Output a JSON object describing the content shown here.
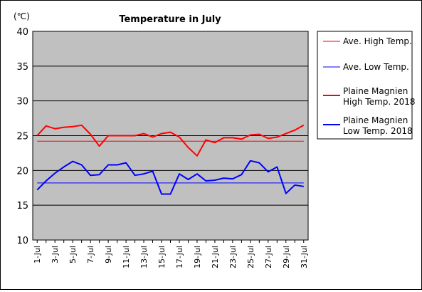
{
  "chart_data": {
    "type": "line",
    "title": "Temperature in July",
    "unit_label": "(℃)",
    "ylim": [
      10,
      40
    ],
    "yticks": [
      10,
      15,
      20,
      25,
      30,
      35,
      40
    ],
    "grid": true,
    "legend_placement": "right",
    "x": [
      "1-Jul",
      "2-Jul",
      "3-Jul",
      "4-Jul",
      "5-Jul",
      "6-Jul",
      "7-Jul",
      "8-Jul",
      "9-Jul",
      "10-Jul",
      "11-Jul",
      "12-Jul",
      "13-Jul",
      "14-Jul",
      "15-Jul",
      "16-Jul",
      "17-Jul",
      "18-Jul",
      "19-Jul",
      "20-Jul",
      "21-Jul",
      "22-Jul",
      "23-Jul",
      "24-Jul",
      "25-Jul",
      "26-Jul",
      "27-Jul",
      "28-Jul",
      "29-Jul",
      "30-Jul",
      "31-Jul"
    ],
    "xtick_labels": [
      "1-Jul",
      "",
      "3-Jul",
      "",
      "5-Jul",
      "",
      "7-Jul",
      "",
      "9-Jul",
      "",
      "11-Jul",
      "",
      "13-Jul",
      "",
      "15-Jul",
      "",
      "17-Jul",
      "",
      "19-Jul",
      "",
      "21-Jul",
      "",
      "23-Jul",
      "",
      "25-Jul",
      "",
      "27-Jul",
      "",
      "29-Jul",
      "",
      "31-Jul"
    ],
    "series": [
      {
        "name": "Ave. High Temp.",
        "color": "#ff0000",
        "width": 1,
        "values": [
          24.2,
          24.2,
          24.2,
          24.2,
          24.2,
          24.2,
          24.2,
          24.2,
          24.2,
          24.2,
          24.2,
          24.2,
          24.2,
          24.2,
          24.2,
          24.2,
          24.2,
          24.2,
          24.2,
          24.2,
          24.2,
          24.2,
          24.2,
          24.2,
          24.2,
          24.2,
          24.2,
          24.2,
          24.2,
          24.2,
          24.2
        ]
      },
      {
        "name": "Ave. Low Temp.",
        "color": "#0000ff",
        "width": 1,
        "values": [
          18.2,
          18.2,
          18.2,
          18.2,
          18.2,
          18.2,
          18.2,
          18.2,
          18.2,
          18.2,
          18.2,
          18.2,
          18.2,
          18.2,
          18.2,
          18.2,
          18.2,
          18.2,
          18.2,
          18.2,
          18.2,
          18.2,
          18.2,
          18.2,
          18.2,
          18.2,
          18.2,
          18.2,
          18.2,
          18.2,
          18.2
        ]
      },
      {
        "name": "Plaine Magnien High Temp. 2018",
        "name_lines": [
          "Plaine Magnien",
          "High Temp. 2018"
        ],
        "color": "#ff0000",
        "width": 2,
        "values": [
          25.0,
          26.4,
          26.0,
          26.2,
          26.3,
          26.5,
          25.2,
          23.5,
          25.0,
          25.0,
          25.0,
          25.0,
          25.3,
          24.8,
          25.3,
          25.5,
          24.8,
          23.3,
          22.1,
          24.4,
          24.0,
          24.7,
          24.7,
          24.5,
          25.1,
          25.2,
          24.6,
          24.8,
          25.3,
          25.8,
          26.5
        ]
      },
      {
        "name": "Plaine Magnien Low Temp. 2018",
        "name_lines": [
          "Plaine Magnien",
          "Low Temp. 2018"
        ],
        "color": "#0000ff",
        "width": 2,
        "values": [
          17.2,
          18.5,
          19.6,
          20.5,
          21.3,
          20.8,
          19.3,
          19.4,
          20.8,
          20.8,
          21.1,
          19.3,
          19.5,
          19.9,
          16.6,
          16.6,
          19.5,
          18.7,
          19.5,
          18.5,
          18.6,
          18.9,
          18.8,
          19.4,
          21.4,
          21.1,
          19.8,
          20.5,
          16.7,
          17.9,
          17.7
        ]
      }
    ]
  }
}
